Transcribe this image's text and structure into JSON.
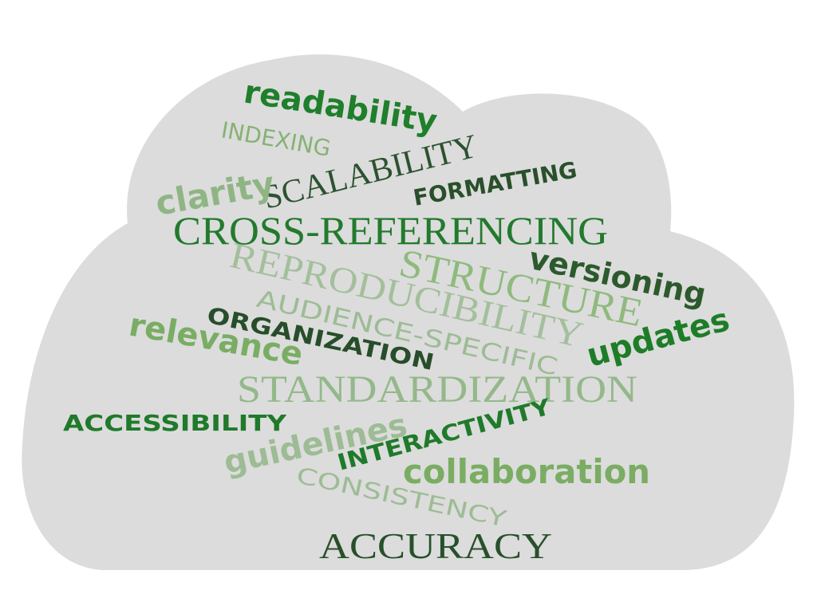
{
  "colors": {
    "background": "#ffffff",
    "cloud": "#dcdcdc",
    "dark_green": "#2f5e30",
    "green": "#1e7a2a",
    "mid_green": "#6da65f",
    "light_green": "#8fb585",
    "pale_green": "#9dbc95"
  },
  "words": [
    {
      "id": "readability",
      "text": "readability",
      "color": "#1f7f2b"
    },
    {
      "id": "indexing",
      "text": "INDEXING",
      "color": "#86b275"
    },
    {
      "id": "scalability",
      "text": "SCALABILITY",
      "color": "#2d5230"
    },
    {
      "id": "formatting",
      "text": "FORMATTING",
      "color": "#2a4f2b"
    },
    {
      "id": "clarity",
      "text": "clarity",
      "color": "#8fb585"
    },
    {
      "id": "cross-referencing",
      "text": "CROSS-REFERENCING",
      "color": "#237a2d"
    },
    {
      "id": "reproducibility",
      "text": "REPRODUCIBILITY",
      "color": "#a3bf9c"
    },
    {
      "id": "structure",
      "text": "STRUCTURE",
      "color": "#8fba7e"
    },
    {
      "id": "versioning",
      "text": "versioning",
      "color": "#2c5a2d"
    },
    {
      "id": "audience-specific",
      "text": "AUDIENCE-SPECIFIC",
      "color": "#9dbc95"
    },
    {
      "id": "organization",
      "text": "ORGANIZATION",
      "color": "#274d2a"
    },
    {
      "id": "relevance",
      "text": "relevance",
      "color": "#79ad64"
    },
    {
      "id": "updates",
      "text": "updates",
      "color": "#1d7d27"
    },
    {
      "id": "standardization",
      "text": "STANDARDIZATION",
      "color": "#94b88a"
    },
    {
      "id": "accessibility",
      "text": "ACCESSIBILITY",
      "color": "#1f7a2a"
    },
    {
      "id": "guidelines",
      "text": "guidelines",
      "color": "#9dbc95"
    },
    {
      "id": "interactivity",
      "text": "INTERACTIVITY",
      "color": "#1f7a2a"
    },
    {
      "id": "collaboration",
      "text": "collaboration",
      "color": "#7aad63"
    },
    {
      "id": "consistency",
      "text": "CONSISTENCY",
      "color": "#9dbc95"
    },
    {
      "id": "accuracy",
      "text": "ACCURACY",
      "color": "#27502b"
    }
  ]
}
